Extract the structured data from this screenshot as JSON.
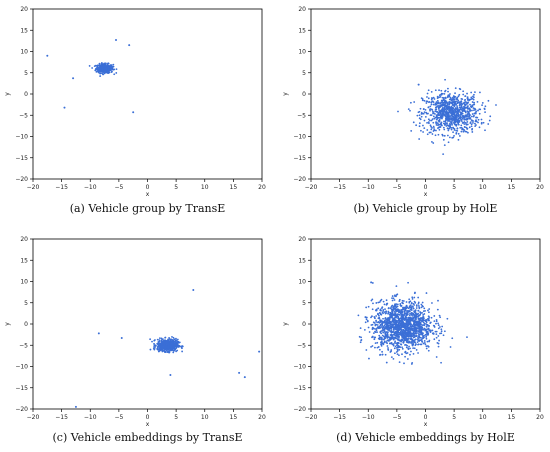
{
  "chart_data": [
    {
      "panel": "a",
      "type": "scatter",
      "caption": "(a)  Vehicle group by TransE",
      "xlabel": "x",
      "ylabel": "y",
      "xlim": [
        -20,
        20
      ],
      "ylim": [
        -20,
        20
      ],
      "xticks": [
        "−20",
        "−15",
        "−10",
        "−5",
        "0",
        "5",
        "10",
        "15",
        "20"
      ],
      "yticks": [
        "−20",
        "−15",
        "−10",
        "−5",
        "0",
        "5",
        "10",
        "15",
        "20"
      ],
      "color": "#3b6fd6",
      "clusters": [
        {
          "center": [
            -7.5,
            6
          ],
          "spread": [
            1.0,
            0.7
          ],
          "count": 320
        }
      ],
      "points": [
        [
          -17.5,
          9
        ],
        [
          -13,
          3.7
        ],
        [
          -14.5,
          -3.2
        ],
        [
          -5.5,
          12.7
        ],
        [
          -3.2,
          11.5
        ],
        [
          -2.5,
          -4.3
        ]
      ]
    },
    {
      "panel": "b",
      "type": "scatter",
      "caption": "(b)  Vehicle group by HolE",
      "xlabel": "x",
      "ylabel": "y",
      "xlim": [
        -20,
        20
      ],
      "ylim": [
        -20,
        20
      ],
      "xticks": [
        "−20",
        "−15",
        "−10",
        "−5",
        "0",
        "5",
        "10",
        "15",
        "20"
      ],
      "yticks": [
        "−20",
        "−15",
        "−10",
        "−5",
        "0",
        "5",
        "10",
        "15",
        "20"
      ],
      "color": "#3b6fd6",
      "clusters": [
        {
          "center": [
            4.5,
            -4.5
          ],
          "spread": [
            3.3,
            3.2
          ],
          "count": 900
        }
      ],
      "points": [
        [
          -1.2,
          2.2
        ]
      ]
    },
    {
      "panel": "c",
      "type": "scatter",
      "caption": "(c)  Vehicle embeddings by TransE",
      "xlabel": "x",
      "ylabel": "y",
      "xlim": [
        -20,
        20
      ],
      "ylim": [
        -20,
        20
      ],
      "xticks": [
        "−20",
        "−15",
        "−10",
        "−5",
        "0",
        "5",
        "10",
        "15",
        "20"
      ],
      "yticks": [
        "−20",
        "−15",
        "−10",
        "−5",
        "0",
        "5",
        "10",
        "15",
        "20"
      ],
      "color": "#3b6fd6",
      "clusters": [
        {
          "center": [
            3.5,
            -5
          ],
          "spread": [
            1.2,
            0.9
          ],
          "count": 650
        }
      ],
      "points": [
        [
          -8.5,
          -2.2
        ],
        [
          -4.5,
          -3.3
        ],
        [
          8,
          8
        ],
        [
          4,
          -12
        ],
        [
          16,
          -11.5
        ],
        [
          17,
          -12.5
        ],
        [
          19.5,
          -6.5
        ],
        [
          -12.5,
          -19.5
        ]
      ]
    },
    {
      "panel": "d",
      "type": "scatter",
      "caption": "(d)  Vehicle embeddings by HolE",
      "xlabel": "x",
      "ylabel": "y",
      "xlim": [
        -20,
        20
      ],
      "ylim": [
        -20,
        20
      ],
      "xticks": [
        "−20",
        "−15",
        "−10",
        "−5",
        "0",
        "5",
        "10",
        "15",
        "20"
      ],
      "yticks": [
        "−20",
        "−15",
        "−10",
        "−5",
        "0",
        "5",
        "10",
        "15",
        "20"
      ],
      "color": "#3b6fd6",
      "clusters": [
        {
          "center": [
            -4,
            -0.5
          ],
          "spread": [
            3.5,
            3.8
          ],
          "count": 1500
        }
      ],
      "points": [
        [
          -9.5,
          9.8
        ]
      ]
    }
  ]
}
